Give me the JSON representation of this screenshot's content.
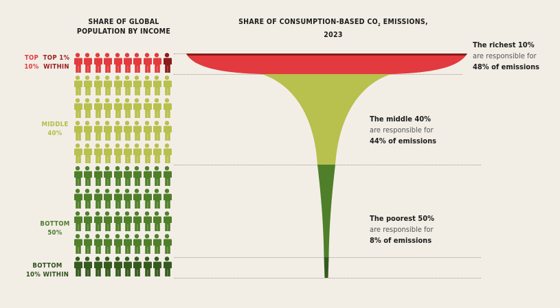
{
  "header_left": {
    "line1": "SHARE OF GLOBAL",
    "line2": "POPULATION BY INCOME"
  },
  "header_right": {
    "pre": "SHARE OF CONSUMPTION-BASED CO",
    "sub": "2",
    "post": " EMISSIONS, 2023"
  },
  "groups": {
    "top10": {
      "line1": "TOP",
      "line2": "10%",
      "color": "#e23a3e"
    },
    "top1": {
      "line1": "TOP 1%",
      "line2": "WITHIN",
      "color": "#9a1f1f"
    },
    "middle": {
      "line1": "MIDDLE",
      "line2": "40%",
      "color": "#b3bd48"
    },
    "bottom50": {
      "line1": "BOTTOM",
      "line2": "50%",
      "color": "#4e7d2a"
    },
    "bottom10": {
      "line1": "BOTTOM",
      "line2": "10% WITHIN",
      "color": "#2f4f1c"
    }
  },
  "annotations": {
    "richest": {
      "l1": "The richest 10%",
      "l2": "are responsible for",
      "l3": "48% of emissions"
    },
    "middle": {
      "l1": "The middle 40%",
      "l2": "are responsible for",
      "l3": "44% of emissions"
    },
    "poorest": {
      "l1": "The poorest 50%",
      "l2": "are responsible for",
      "l3": "8% of emissions"
    }
  },
  "chart_data": {
    "type": "funnel",
    "title": "SHARE OF CONSUMPTION-BASED CO2 EMISSIONS, 2023",
    "population_grid": {
      "total_icons": 100,
      "rows": 10,
      "per_row": 10
    },
    "segments": [
      {
        "name": "Top 10%",
        "population_pct": 10,
        "emissions_pct": 48,
        "color": "#e23a3e"
      },
      {
        "name": "Middle 40%",
        "population_pct": 40,
        "emissions_pct": 44,
        "color": "#b8c04e"
      },
      {
        "name": "Bottom 50%",
        "population_pct": 50,
        "emissions_pct": 8,
        "color": "#4f7f2a"
      }
    ],
    "sub_segments": [
      {
        "name": "Top 1% within",
        "population_pct": 1,
        "color": "#8b1a1a"
      },
      {
        "name": "Bottom 10% within",
        "population_pct": 10,
        "color": "#355a1f"
      }
    ]
  }
}
